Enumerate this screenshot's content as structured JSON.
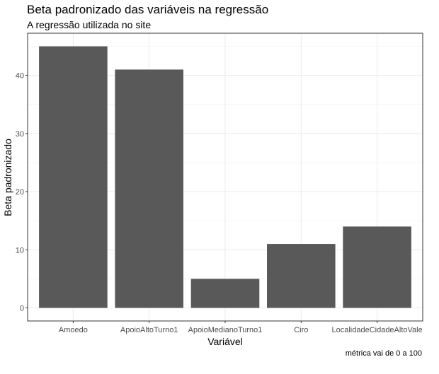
{
  "chart_data": {
    "type": "bar",
    "title": "Beta padronizado das variáveis na regressão",
    "subtitle": "A regressão utilizada no site",
    "caption": "métrica vai de 0 a 100",
    "xlabel": "Variável",
    "ylabel": "Beta padronizado",
    "categories": [
      "Amoedo",
      "ApoioAltoTurno1",
      "ApoioMedianoTurno1",
      "Ciro",
      "LocalidadeCidadeAltoVale"
    ],
    "values": [
      45,
      41,
      5,
      11,
      14
    ],
    "ylim": [
      -2.25,
      47.25
    ],
    "yticks": [
      0,
      10,
      20,
      30,
      40
    ],
    "bar_color": "#595959",
    "grid": true
  }
}
